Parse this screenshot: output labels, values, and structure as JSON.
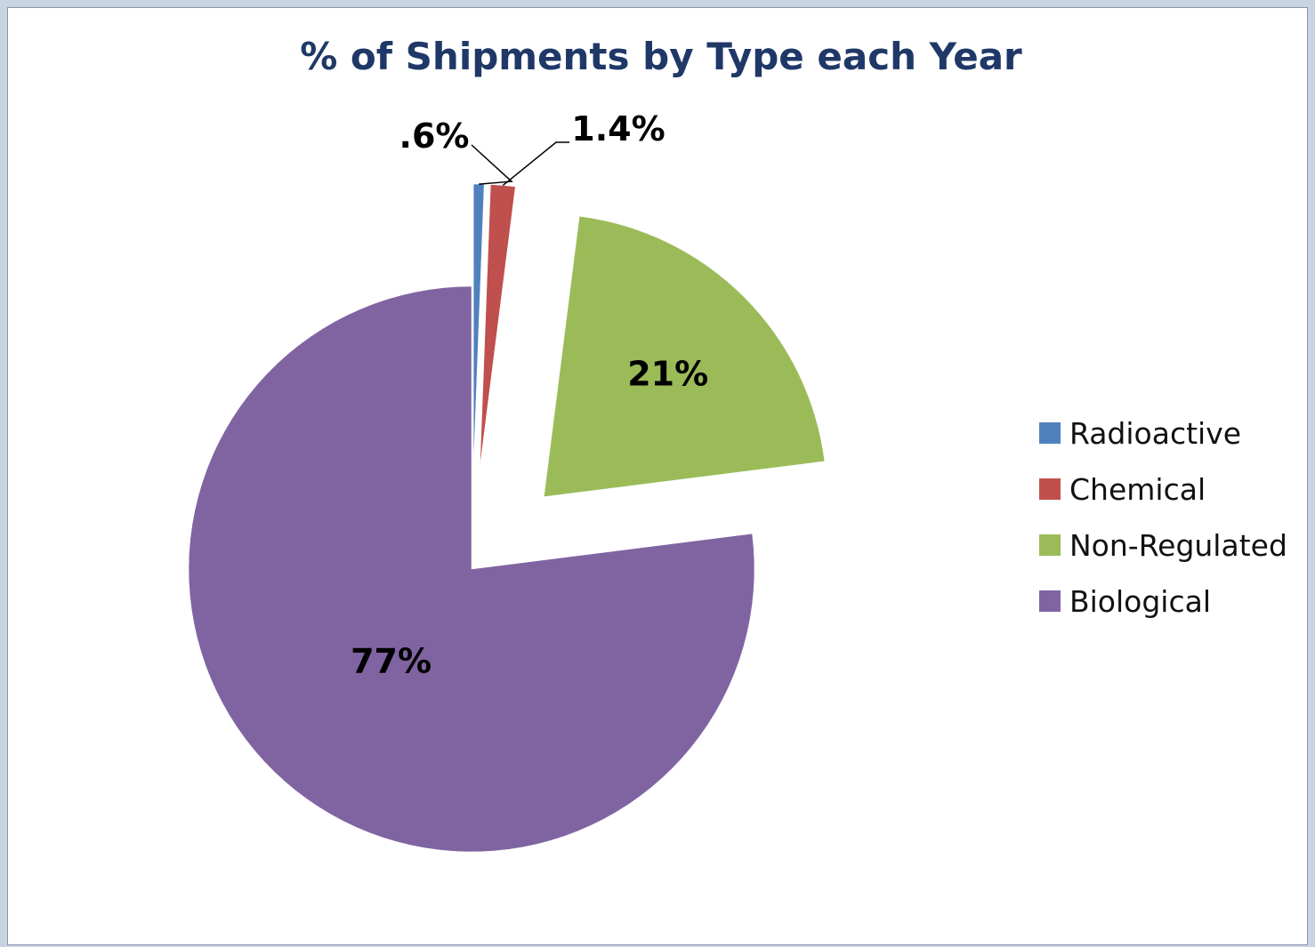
{
  "chart_data": {
    "type": "pie",
    "title": "% of Shipments by Type each Year",
    "categories": [
      "Radioactive",
      "Chemical",
      "Non-Regulated",
      "Biological"
    ],
    "values": [
      0.6,
      1.4,
      21,
      77
    ],
    "data_labels": [
      ".6%",
      "1.4%",
      "21%",
      "77%"
    ],
    "colors": [
      "#4f81bd",
      "#c0504d",
      "#9bbb59",
      "#8064a2"
    ],
    "exploded": [
      true,
      true,
      true,
      false
    ],
    "legend_position": "right"
  }
}
